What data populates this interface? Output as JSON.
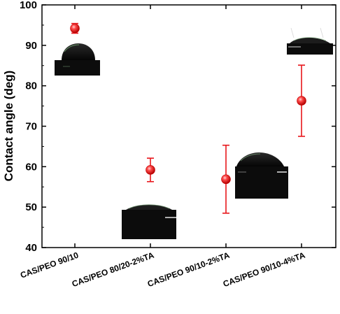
{
  "chart_data": {
    "type": "scatter",
    "title": "",
    "xlabel": "",
    "ylabel": "Contact angle (deg)",
    "ylim": [
      40,
      100
    ],
    "yticks": [
      40,
      50,
      60,
      70,
      80,
      90,
      100
    ],
    "categories": [
      "CAS/PEO 90/10",
      "CAS/PEO 80/20-2%TA",
      "CAS/PEO 90/10-2%TA",
      "CAS/PEO 90/10-4%TA"
    ],
    "series": [
      {
        "values": [
          94.2,
          59.2,
          56.9,
          76.3
        ],
        "error": [
          1.2,
          2.9,
          8.4,
          8.8
        ]
      }
    ],
    "grid": false,
    "legend": "none",
    "colors": {
      "marker": "#e8161b",
      "errorbar": "#e8161b",
      "axis": "#000000"
    },
    "annotations": [
      "droplet-photo-cas-peo-90-10",
      "droplet-photo-cas-peo-80-20-2ta",
      "droplet-photo-cas-peo-90-10-2ta",
      "droplet-photo-cas-peo-90-10-4ta"
    ]
  }
}
